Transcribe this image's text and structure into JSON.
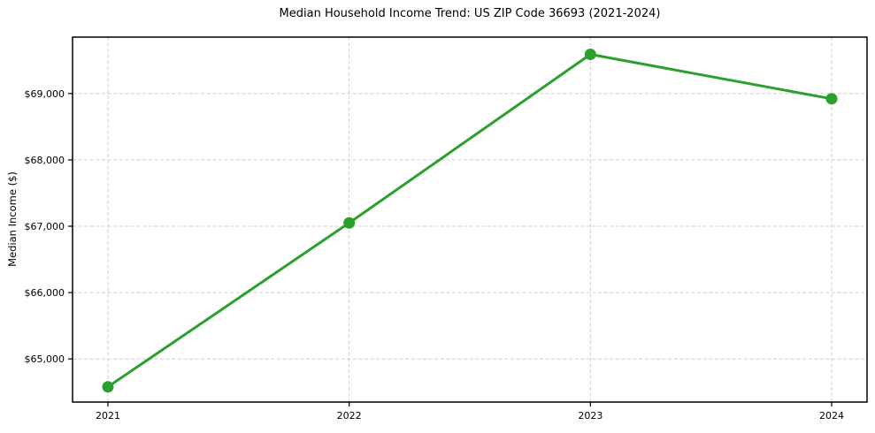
{
  "figure": {
    "title": "Median Household Income Trend: US ZIP Code 36693 (2021-2024)",
    "ylabel": "Median Income ($)"
  },
  "chart_data": {
    "type": "line",
    "title": "Median Household Income Trend: US ZIP Code 36693 (2021-2024)",
    "xlabel": "",
    "ylabel": "Median Income ($)",
    "x": [
      2021,
      2022,
      2023,
      2024
    ],
    "x_tick_labels": [
      "2021",
      "2022",
      "2023",
      "2024"
    ],
    "series": [
      {
        "name": "Median household income",
        "values": [
          64580,
          67050,
          69590,
          68920
        ],
        "color": "#2ca02c",
        "marker": "circle",
        "line_width": 3,
        "marker_size": 6.5
      }
    ],
    "ylim": [
      64350,
      69850
    ],
    "y_ticks": [
      65000,
      66000,
      67000,
      68000,
      69000
    ],
    "y_tick_labels": [
      "$65,000",
      "$66,000",
      "$67,000",
      "$68,000",
      "$69,000"
    ],
    "grid": true,
    "grid_style": "dashed",
    "grid_color": "#cfcfcf",
    "legend_position": "none"
  },
  "colors": {
    "line": "#2ca02c",
    "grid": "#cfcfcf",
    "axis": "#000000",
    "background": "#ffffff",
    "text": "#000000"
  }
}
